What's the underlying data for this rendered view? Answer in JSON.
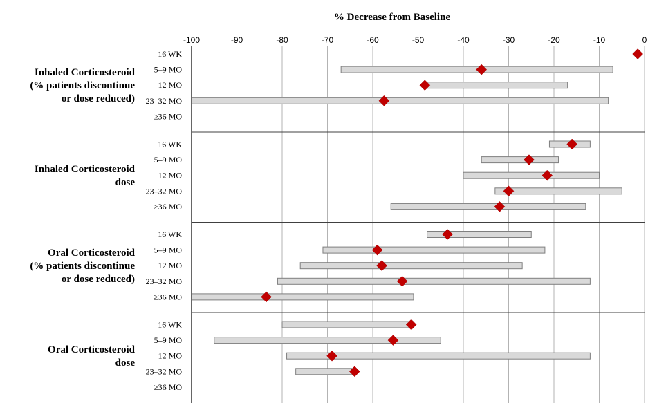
{
  "chart_data": {
    "type": "range-dot",
    "title": "% Decrease from Baseline",
    "xlim": [
      -100,
      0
    ],
    "xticks": [
      -100,
      -90,
      -80,
      -70,
      -60,
      -50,
      -40,
      -30,
      -20,
      -10,
      0
    ],
    "grid": true,
    "colors": {
      "bar": "#d9d9d9",
      "bar_border": "#7f7f7f",
      "point": "#c00000"
    },
    "groups": [
      {
        "label_lines": [
          "Inhaled Corticosteroid",
          "(% patients discontinue",
          "or dose reduced)"
        ],
        "rows": [
          {
            "label": "16 WK",
            "low": null,
            "high": null,
            "point": -1.5
          },
          {
            "label": "5–9 MO",
            "low": -67,
            "high": -7,
            "point": -36
          },
          {
            "label": "12 MO",
            "low": -48,
            "high": -17,
            "point": -48.5
          },
          {
            "label": "23–32 MO",
            "low": -100,
            "high": -8,
            "point": -57.5
          },
          {
            "label": "≥36 MO",
            "low": null,
            "high": null,
            "point": null
          }
        ]
      },
      {
        "label_lines": [
          "Inhaled Corticosteroid",
          "dose"
        ],
        "rows": [
          {
            "label": "16 WK",
            "low": -21,
            "high": -12,
            "point": -16
          },
          {
            "label": "5–9 MO",
            "low": -36,
            "high": -19,
            "point": -25.5
          },
          {
            "label": "12 MO",
            "low": -40,
            "high": -10,
            "point": -21.5
          },
          {
            "label": "23–32 MO",
            "low": -33,
            "high": -5,
            "point": -30
          },
          {
            "label": "≥36 MO",
            "low": -56,
            "high": -13,
            "point": -32
          }
        ]
      },
      {
        "label_lines": [
          "Oral Corticosteroid",
          "(% patients discontinue",
          "or dose reduced)"
        ],
        "rows": [
          {
            "label": "16 WK",
            "low": -48,
            "high": -25,
            "point": -43.5
          },
          {
            "label": "5–9 MO",
            "low": -71,
            "high": -22,
            "point": -59
          },
          {
            "label": "12 MO",
            "low": -76,
            "high": -27,
            "point": -58
          },
          {
            "label": "23–32 MO",
            "low": -81,
            "high": -12,
            "point": -53.5
          },
          {
            "label": "≥36 MO",
            "low": -100,
            "high": -51,
            "point": -83.5
          }
        ]
      },
      {
        "label_lines": [
          "Oral Corticosteroid",
          "dose"
        ],
        "rows": [
          {
            "label": "16 WK",
            "low": -80,
            "high": -51,
            "point": -51.5
          },
          {
            "label": "5–9 MO",
            "low": -95,
            "high": -45,
            "point": -55.5
          },
          {
            "label": "12 MO",
            "low": -79,
            "high": -12,
            "point": -69
          },
          {
            "label": "23–32 MO",
            "low": -77,
            "high": -64,
            "point": -64
          },
          {
            "label": "≥36 MO",
            "low": null,
            "high": null,
            "point": null
          }
        ]
      }
    ]
  }
}
